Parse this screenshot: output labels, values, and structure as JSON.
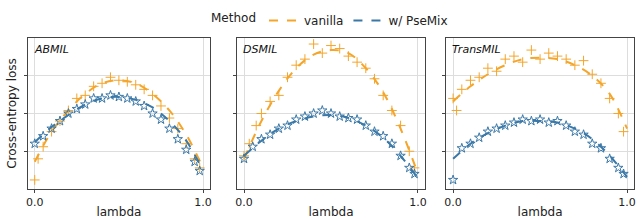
{
  "chart_data": {
    "type": "scatter",
    "y_label": "Cross-entropy loss",
    "x_label": "lambda",
    "legend_title": "Method",
    "legend": "top",
    "grid": true,
    "tick_labels": "x",
    "xlim": [
      -0.04,
      1.04
    ],
    "xticks": [
      {
        "value": 0,
        "label": "0.0"
      },
      {
        "value": 1,
        "label": "1.0"
      }
    ],
    "ylim": [
      0,
      1
    ],
    "yticks": [
      0.25,
      0.5,
      0.75
    ],
    "fit_x": [
      0,
      0.1,
      0.2,
      0.3,
      0.4,
      0.5,
      0.6,
      0.7,
      0.8,
      0.9,
      1.0
    ],
    "panels": [
      {
        "title": "ABMIL",
        "series": [
          {
            "name": "vanilla",
            "color": "#f4a52a",
            "marker": "cross",
            "line_style": "dashed",
            "x": [
              0,
              0.02,
              0.05,
              0.1,
              0.15,
              0.2,
              0.25,
              0.3,
              0.35,
              0.4,
              0.45,
              0.5,
              0.55,
              0.6,
              0.65,
              0.7,
              0.75,
              0.8,
              0.85,
              0.9,
              0.95,
              0.98
            ],
            "values": [
              0.06,
              0.2,
              0.28,
              0.38,
              0.45,
              0.52,
              0.6,
              0.62,
              0.68,
              0.7,
              0.74,
              0.72,
              0.71,
              0.69,
              0.66,
              0.62,
              0.55,
              0.47,
              0.4,
              0.3,
              0.2,
              0.14
            ],
            "fit": [
              0.18,
              0.38,
              0.52,
              0.63,
              0.7,
              0.72,
              0.7,
              0.63,
              0.52,
              0.36,
              0.14
            ]
          },
          {
            "name": "w/ PseMix",
            "color": "#3a78a8",
            "marker": "star",
            "line_style": "dashed",
            "x": [
              0,
              0.05,
              0.1,
              0.15,
              0.2,
              0.25,
              0.3,
              0.35,
              0.4,
              0.45,
              0.5,
              0.55,
              0.6,
              0.65,
              0.7,
              0.75,
              0.8,
              0.85,
              0.9,
              0.95,
              0.98
            ],
            "values": [
              0.3,
              0.35,
              0.4,
              0.45,
              0.5,
              0.53,
              0.56,
              0.6,
              0.6,
              0.62,
              0.61,
              0.6,
              0.58,
              0.55,
              0.5,
              0.46,
              0.4,
              0.33,
              0.26,
              0.18,
              0.12
            ],
            "fit": [
              0.31,
              0.41,
              0.49,
              0.56,
              0.6,
              0.61,
              0.59,
              0.54,
              0.45,
              0.32,
              0.12
            ]
          }
        ]
      },
      {
        "title": "DSMIL",
        "series": [
          {
            "name": "vanilla",
            "color": "#f4a52a",
            "marker": "cross",
            "line_style": "dashed",
            "x": [
              0,
              0.03,
              0.07,
              0.1,
              0.15,
              0.2,
              0.25,
              0.3,
              0.35,
              0.4,
              0.45,
              0.5,
              0.55,
              0.6,
              0.65,
              0.7,
              0.75,
              0.8,
              0.85,
              0.9,
              0.95,
              0.98
            ],
            "values": [
              0.22,
              0.3,
              0.42,
              0.5,
              0.58,
              0.62,
              0.74,
              0.82,
              0.86,
              0.96,
              0.9,
              0.95,
              0.93,
              0.88,
              0.84,
              0.8,
              0.73,
              0.62,
              0.52,
              0.42,
              0.25,
              0.14
            ],
            "fit": [
              0.2,
              0.45,
              0.65,
              0.8,
              0.89,
              0.92,
              0.9,
              0.8,
              0.64,
              0.4,
              0.1
            ]
          },
          {
            "name": "w/ PseMix",
            "color": "#3a78a8",
            "marker": "star",
            "line_style": "dashed",
            "x": [
              0,
              0.05,
              0.1,
              0.15,
              0.2,
              0.25,
              0.3,
              0.35,
              0.4,
              0.45,
              0.5,
              0.55,
              0.6,
              0.65,
              0.7,
              0.75,
              0.8,
              0.85,
              0.9,
              0.95,
              0.98
            ],
            "values": [
              0.2,
              0.28,
              0.33,
              0.36,
              0.4,
              0.42,
              0.46,
              0.48,
              0.5,
              0.52,
              0.5,
              0.48,
              0.47,
              0.46,
              0.42,
              0.38,
              0.35,
              0.3,
              0.22,
              0.14,
              0.1
            ],
            "fit": [
              0.22,
              0.32,
              0.4,
              0.45,
              0.48,
              0.49,
              0.47,
              0.42,
              0.34,
              0.22,
              0.07
            ]
          }
        ]
      },
      {
        "title": "TransMIL",
        "series": [
          {
            "name": "vanilla",
            "color": "#f4a52a",
            "marker": "cross",
            "line_style": "dashed",
            "x": [
              0,
              0.02,
              0.05,
              0.1,
              0.15,
              0.2,
              0.25,
              0.3,
              0.35,
              0.4,
              0.45,
              0.5,
              0.55,
              0.6,
              0.65,
              0.7,
              0.75,
              0.8,
              0.85,
              0.9,
              0.95,
              0.98
            ],
            "values": [
              0.6,
              0.52,
              0.66,
              0.72,
              0.74,
              0.8,
              0.78,
              0.86,
              0.88,
              0.84,
              0.92,
              0.86,
              0.9,
              0.88,
              0.86,
              0.82,
              0.85,
              0.76,
              0.7,
              0.6,
              0.5,
              0.38
            ],
            "fit": [
              0.58,
              0.68,
              0.76,
              0.82,
              0.86,
              0.87,
              0.86,
              0.82,
              0.75,
              0.63,
              0.4
            ]
          },
          {
            "name": "w/ PseMix",
            "color": "#3a78a8",
            "marker": "star",
            "line_style": "dashed",
            "x": [
              0,
              0.05,
              0.1,
              0.15,
              0.2,
              0.25,
              0.3,
              0.35,
              0.4,
              0.45,
              0.5,
              0.55,
              0.6,
              0.65,
              0.7,
              0.75,
              0.8,
              0.85,
              0.9,
              0.95,
              0.98
            ],
            "values": [
              0.06,
              0.27,
              0.3,
              0.34,
              0.38,
              0.4,
              0.42,
              0.44,
              0.46,
              0.45,
              0.46,
              0.44,
              0.45,
              0.42,
              0.38,
              0.36,
              0.3,
              0.27,
              0.2,
              0.14,
              0.1
            ],
            "fit": [
              0.2,
              0.3,
              0.37,
              0.42,
              0.45,
              0.45,
              0.44,
              0.4,
              0.33,
              0.22,
              0.08
            ]
          }
        ]
      }
    ]
  }
}
